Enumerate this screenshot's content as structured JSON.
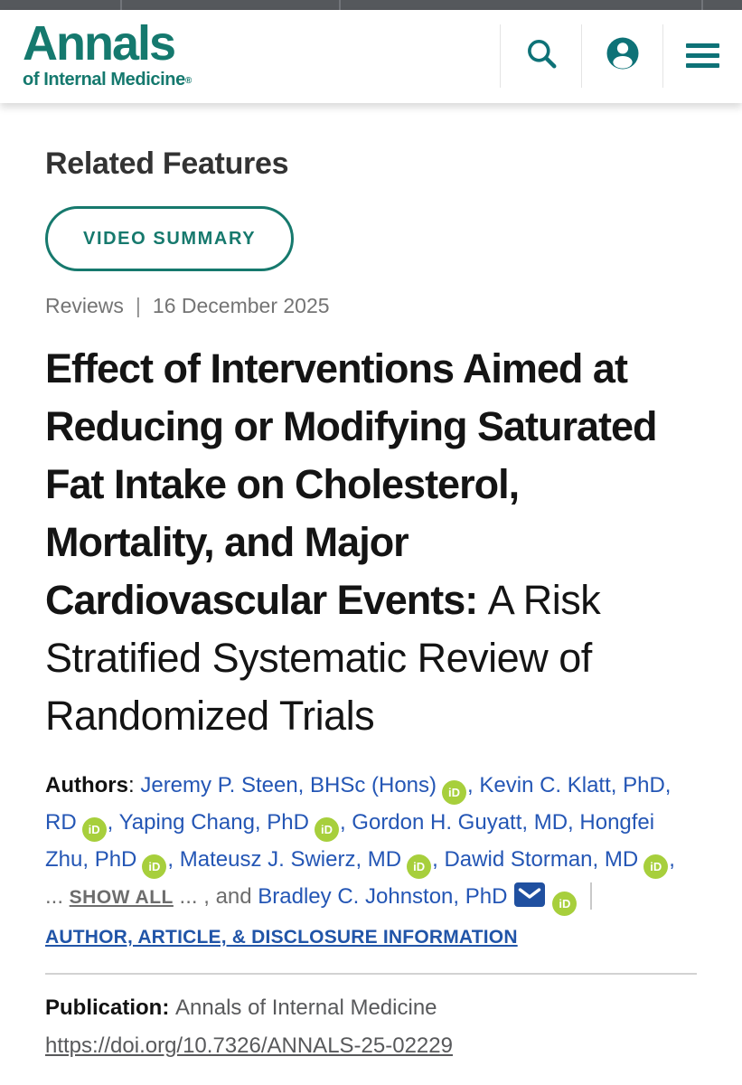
{
  "header": {
    "logo": {
      "line1": "Annals",
      "line2": "of Internal Medicine",
      "registered": "®"
    },
    "actions": [
      {
        "icon": "search"
      },
      {
        "icon": "account"
      },
      {
        "icon": "menu"
      }
    ]
  },
  "related": {
    "heading": "Related Features",
    "video_button": "VIDEO SUMMARY"
  },
  "article": {
    "section": "Reviews",
    "separator": "|",
    "date": "16 December 2025",
    "title_bold": "Effect of Interventions Aimed at Reducing or Modifying Saturated Fat Intake on Cholesterol, Mortality, and Major Cardiovascular Events:",
    "title_regular": "A Risk Stratified Systematic Review of Randomized Trials"
  },
  "authors": {
    "label": "Authors",
    "colon": ": ",
    "comma": ", ",
    "orcid_text": "iD",
    "list": [
      {
        "name": "Jeremy P. Steen, BHSc (Hons)",
        "orcid": true
      },
      {
        "name": "Kevin C. Klatt, PhD, RD",
        "orcid": true
      },
      {
        "name": "Yaping Chang, PhD",
        "orcid": true
      },
      {
        "name": "Gordon H. Guyatt, MD",
        "orcid": false
      },
      {
        "name": "Hongfei Zhu, PhD",
        "orcid": true
      },
      {
        "name": "Mateusz J. Swierz, MD",
        "orcid": true
      },
      {
        "name": "Dawid Storman, MD",
        "orcid": true
      }
    ],
    "ellipsis_before": "... ",
    "show_all": "SHOW ALL",
    "ellipsis_after": " ... , and ",
    "last_author": {
      "name": "Bradley C. Johnston, PhD",
      "email": true,
      "orcid": true
    },
    "info_link": "AUTHOR, ARTICLE, & DISCLOSURE INFORMATION"
  },
  "publication": {
    "label": "Publication",
    "colon": ": ",
    "journal": "Annals of Internal Medicine",
    "doi": "https://doi.org/10.7326/ANNALS-25-02229"
  },
  "colors": {
    "brand_teal": "#15796e",
    "icon_teal": "#0e7277",
    "link_blue": "#2456b5",
    "orcid_green": "#a7cf3c",
    "email_blue": "#2050a0",
    "muted_gray": "#6d6d6d"
  }
}
